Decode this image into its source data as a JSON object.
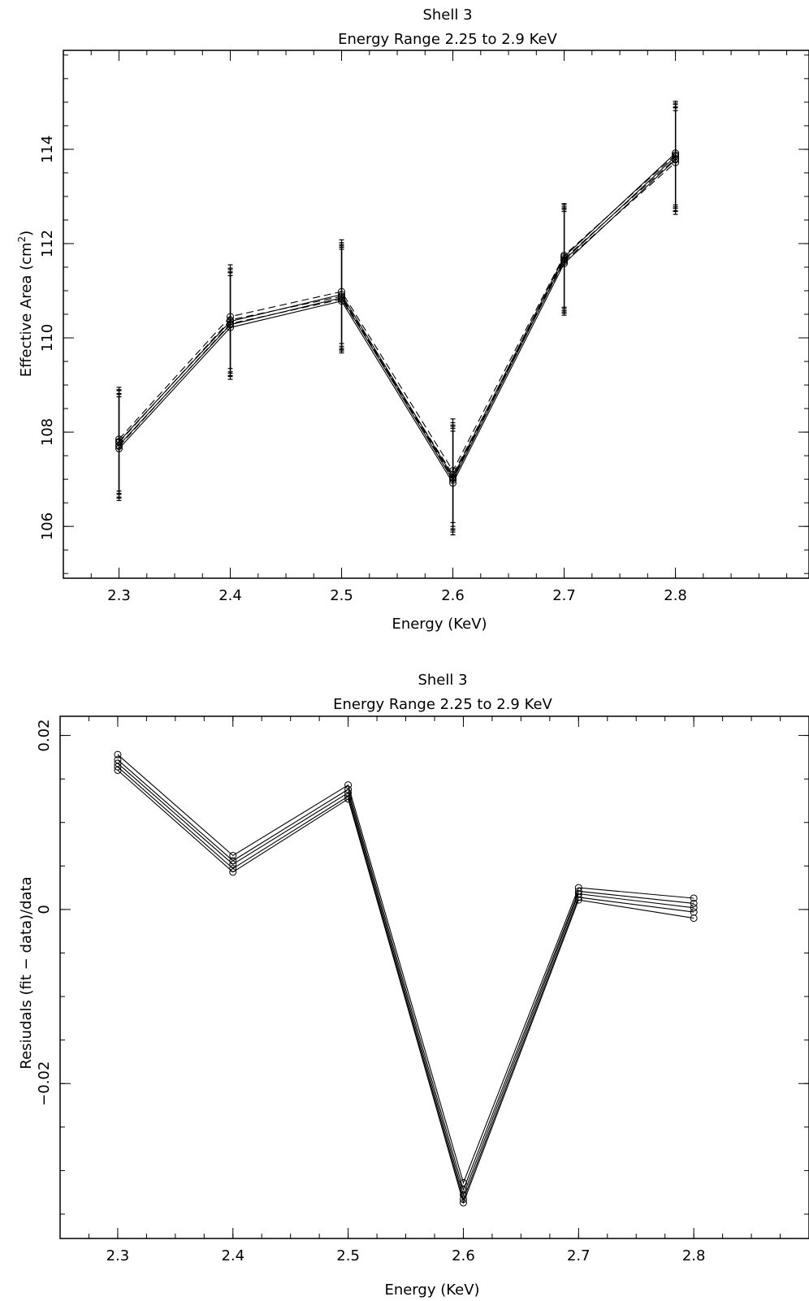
{
  "chart_data": [
    {
      "type": "line",
      "title": "Shell 3",
      "subtitle": "Energy Range 2.25 to 2.9 KeV",
      "xlabel": "Energy (KeV)",
      "ylabel": "Effective Area (cm",
      "ylabel_sup": "2",
      "ylabel_close": ")",
      "xlim": [
        2.25,
        2.92
      ],
      "ylim": [
        104.9,
        116.1
      ],
      "x_ticks": [
        2.3,
        2.4,
        2.5,
        2.6,
        2.7,
        2.8
      ],
      "x_tick_labels": [
        "2.3",
        "2.4",
        "2.5",
        "2.6",
        "2.7",
        "2.8"
      ],
      "y_ticks": [
        106,
        108,
        110,
        112,
        114
      ],
      "y_tick_labels": [
        "106",
        "108",
        "110",
        "112",
        "114"
      ],
      "error_bar": 1.1,
      "grid": false,
      "legend": false,
      "x": [
        2.3,
        2.4,
        2.5,
        2.6,
        2.7,
        2.8
      ],
      "series": [
        {
          "style": "solid",
          "values": [
            107.65,
            110.22,
            110.78,
            106.92,
            111.58,
            113.78
          ]
        },
        {
          "style": "solid",
          "values": [
            107.72,
            110.28,
            110.85,
            106.98,
            111.65,
            113.85
          ]
        },
        {
          "style": "solid",
          "values": [
            107.8,
            110.35,
            110.92,
            107.05,
            111.72,
            113.92
          ]
        },
        {
          "style": "dashed",
          "values": [
            107.7,
            110.3,
            110.82,
            107.1,
            111.62,
            113.72
          ]
        },
        {
          "style": "dashed",
          "values": [
            107.78,
            110.38,
            110.88,
            107.02,
            111.68,
            113.8
          ]
        },
        {
          "style": "dashed",
          "values": [
            107.85,
            110.45,
            110.98,
            107.18,
            111.75,
            113.88
          ]
        }
      ]
    },
    {
      "type": "line",
      "title": "Shell 3",
      "subtitle": "Energy Range 2.25 to 2.9 KeV",
      "xlabel": "Energy (KeV)",
      "ylabel": "Resiudals (fit − data)/data",
      "xlim": [
        2.25,
        2.9
      ],
      "ylim": [
        -0.0378,
        0.0222
      ],
      "x_ticks": [
        2.3,
        2.4,
        2.5,
        2.6,
        2.7,
        2.8
      ],
      "x_tick_labels": [
        "2.3",
        "2.4",
        "2.5",
        "2.6",
        "2.7",
        "2.8"
      ],
      "y_ticks": [
        -0.02,
        0,
        0.02
      ],
      "y_tick_labels": [
        "−0.02",
        "0",
        "0.02"
      ],
      "grid": false,
      "legend": false,
      "x": [
        2.3,
        2.4,
        2.5,
        2.6,
        2.7,
        2.8
      ],
      "series": [
        {
          "style": "solid",
          "values": [
            0.0178,
            0.0062,
            0.0143,
            -0.0314,
            0.0025,
            0.0013
          ]
        },
        {
          "style": "solid",
          "values": [
            0.0172,
            0.0056,
            0.0138,
            -0.0322,
            0.0021,
            0.0007
          ]
        },
        {
          "style": "solid",
          "values": [
            0.0168,
            0.0052,
            0.0134,
            -0.0328,
            0.0018,
            0.0002
          ]
        },
        {
          "style": "solid",
          "values": [
            0.0164,
            0.0047,
            0.013,
            -0.0333,
            0.0014,
            -0.0003
          ]
        },
        {
          "style": "solid",
          "values": [
            0.016,
            0.0043,
            0.0127,
            -0.0337,
            0.0011,
            -0.001
          ]
        }
      ]
    }
  ]
}
